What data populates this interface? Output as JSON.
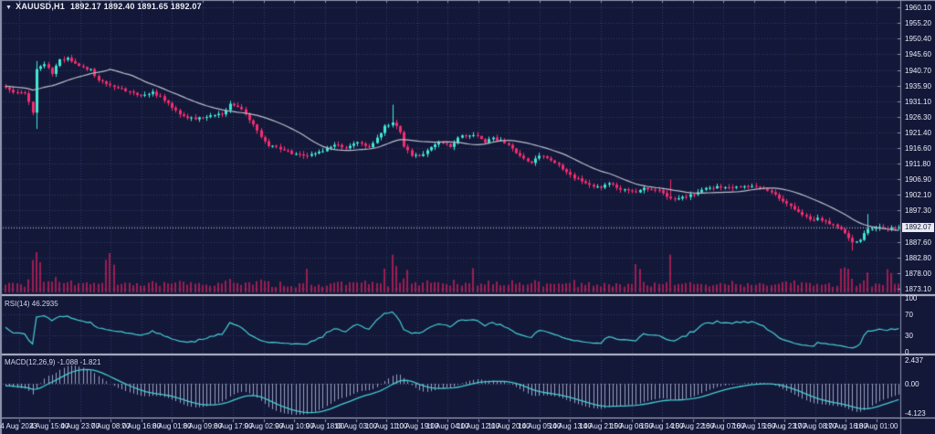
{
  "window": {
    "dropdown_icon": "▼",
    "symbol": "XAUUSD,H1",
    "ohlc": "1892.17 1892.40 1891.65 1892.07"
  },
  "colors": {
    "background": "#131839",
    "grid": "#2f3a68",
    "bull": "#3fe9d4",
    "bear": "#f62d6d",
    "volume": "#9c1e52",
    "ma_line": "#b9bdc9",
    "indicator_line": "#46ccd2",
    "macd_bars": "#9aa1bd",
    "separator": "#b9bdcb",
    "axis_text": "#e8eaf2",
    "price_line": "#c7cad6",
    "current_price_bg": "#e9eaf2",
    "current_price_text": "#131839"
  },
  "price_axis": {
    "ticks": [
      {
        "label": "1960.10",
        "price": 1960.1
      },
      {
        "label": "1955.20",
        "price": 1955.2
      },
      {
        "label": "1950.40",
        "price": 1950.4
      },
      {
        "label": "1945.60",
        "price": 1945.6
      },
      {
        "label": "1940.70",
        "price": 1940.7
      },
      {
        "label": "1935.90",
        "price": 1935.9
      },
      {
        "label": "1931.10",
        "price": 1931.1
      },
      {
        "label": "1926.30",
        "price": 1926.3
      },
      {
        "label": "1921.40",
        "price": 1921.4
      },
      {
        "label": "1916.60",
        "price": 1916.6
      },
      {
        "label": "1911.80",
        "price": 1911.8
      },
      {
        "label": "1906.90",
        "price": 1906.9
      },
      {
        "label": "1902.10",
        "price": 1902.1
      },
      {
        "label": "1897.30",
        "price": 1897.3
      },
      {
        "label": "1887.60",
        "price": 1887.6
      },
      {
        "label": "1882.80",
        "price": 1882.8
      },
      {
        "label": "1878.00",
        "price": 1878.0
      },
      {
        "label": "1873.10",
        "price": 1873.1
      }
    ],
    "hidden_ticks": [
      1892.45
    ],
    "current": {
      "label": "1892.07",
      "price": 1892.07
    }
  },
  "time_axis": {
    "labels": [
      "4 Aug 2023",
      "4 Aug 15:00",
      "4 Aug 23:00",
      "7 Aug 08:00",
      "7 Aug 16:00",
      "8 Aug 01:00",
      "8 Aug 09:00",
      "8 Aug 17:00",
      "9 Aug 02:00",
      "9 Aug 10:00",
      "9 Aug 18:00",
      "10 Aug 03:00",
      "10 Aug 11:00",
      "10 Aug 19:00",
      "11 Aug 04:00",
      "11 Aug 12:00",
      "11 Aug 20:00",
      "14 Aug 05:00",
      "14 Aug 13:00",
      "14 Aug 21:00",
      "15 Aug 06:00",
      "15 Aug 14:00",
      "15 Aug 22:00",
      "16 Aug 07:00",
      "16 Aug 15:00",
      "16 Aug 23:00",
      "17 Aug 08:00",
      "17 Aug 16:00",
      "18 Aug 01:00"
    ]
  },
  "indicators": {
    "rsi": {
      "label": "RSI(14) 46.2935",
      "period": 14,
      "current_value": 46.2935,
      "levels": [
        {
          "label": "100",
          "value": 100
        },
        {
          "label": "70",
          "value": 70
        },
        {
          "label": "30",
          "value": 30
        },
        {
          "label": "0",
          "value": 0
        }
      ]
    },
    "macd": {
      "label": "MACD(12,26,9) -1.088 -1.821",
      "params": [
        12,
        26,
        9
      ],
      "current_macd": -1.088,
      "current_signal": -1.821,
      "scale": [
        {
          "label": "2.437",
          "value": 2.437
        },
        {
          "label": "0.00",
          "value": 0.0
        },
        {
          "label": "-4.123",
          "value": -4.123
        }
      ]
    }
  },
  "chart_data": {
    "type": "candlestick",
    "symbol": "XAUUSD",
    "timeframe": "H1",
    "title": "XAUUSD,H1",
    "ohlc_display": {
      "open": "1892.17",
      "high": "1892.40",
      "low": "1891.65",
      "close": "1892.07"
    },
    "y_range": [
      1873.1,
      1960.1
    ],
    "num_candles": 232,
    "ma_period": 20,
    "seed": 7,
    "close_anchors": [
      [
        0,
        1935.3
      ],
      [
        2,
        1933.8
      ],
      [
        5,
        1933.5
      ],
      [
        7,
        1927.5
      ],
      [
        8,
        1941.0
      ],
      [
        10,
        1942.5
      ],
      [
        12,
        1939.5
      ],
      [
        14,
        1944.0
      ],
      [
        16,
        1944.5
      ],
      [
        19,
        1942.0
      ],
      [
        22,
        1941.0
      ],
      [
        24,
        1937.5
      ],
      [
        27,
        1936.0
      ],
      [
        31,
        1934.2
      ],
      [
        35,
        1932.8
      ],
      [
        38,
        1934.0
      ],
      [
        42,
        1930.5
      ],
      [
        45,
        1927.0
      ],
      [
        49,
        1925.5
      ],
      [
        52,
        1926.2
      ],
      [
        56,
        1927.0
      ],
      [
        58,
        1930.3
      ],
      [
        61,
        1928.6
      ],
      [
        63,
        1925.2
      ],
      [
        66,
        1920.0
      ],
      [
        68,
        1917.2
      ],
      [
        71,
        1916.2
      ],
      [
        75,
        1914.8
      ],
      [
        78,
        1914.2
      ],
      [
        82,
        1915.6
      ],
      [
        85,
        1917.6
      ],
      [
        88,
        1916.5
      ],
      [
        91,
        1918.4
      ],
      [
        94,
        1916.9
      ],
      [
        96,
        1919.8
      ],
      [
        98,
        1923.5
      ],
      [
        100,
        1924.5
      ],
      [
        102,
        1921.5
      ],
      [
        103,
        1917.0
      ],
      [
        105,
        1914.2
      ],
      [
        108,
        1914.7
      ],
      [
        110,
        1916.9
      ],
      [
        112,
        1918.3
      ],
      [
        115,
        1916.9
      ],
      [
        117,
        1919.8
      ],
      [
        119,
        1920.3
      ],
      [
        122,
        1920.3
      ],
      [
        124,
        1918.3
      ],
      [
        126,
        1919.8
      ],
      [
        130,
        1917.5
      ],
      [
        133,
        1914.2
      ],
      [
        136,
        1912.0
      ],
      [
        138,
        1914.2
      ],
      [
        141,
        1912.8
      ],
      [
        144,
        1910.0
      ],
      [
        147,
        1907.2
      ],
      [
        149,
        1906.3
      ],
      [
        151,
        1905.2
      ],
      [
        154,
        1904.3
      ],
      [
        156,
        1905.7
      ],
      [
        158,
        1904.3
      ],
      [
        161,
        1903.5
      ],
      [
        163,
        1902.9
      ],
      [
        165,
        1904.3
      ],
      [
        169,
        1903.5
      ],
      [
        172,
        1901.0
      ],
      [
        175,
        1901.5
      ],
      [
        177,
        1902.3
      ],
      [
        179,
        1902.9
      ],
      [
        182,
        1904.3
      ],
      [
        184,
        1904.8
      ],
      [
        188,
        1904.3
      ],
      [
        191,
        1904.8
      ],
      [
        195,
        1904.3
      ],
      [
        198,
        1902.9
      ],
      [
        201,
        1900.1
      ],
      [
        203,
        1898.7
      ],
      [
        206,
        1895.9
      ],
      [
        208,
        1894.5
      ],
      [
        210,
        1895.0
      ],
      [
        213,
        1893.1
      ],
      [
        215,
        1892.2
      ],
      [
        217,
        1890.3
      ],
      [
        219,
        1887.4
      ],
      [
        221,
        1888.2
      ],
      [
        223,
        1891.6
      ],
      [
        226,
        1892.2
      ],
      [
        228,
        1891.6
      ],
      [
        231,
        1892.07
      ]
    ],
    "events": {
      "8": {
        "low": 1922.5,
        "high": 1943.5
      },
      "100": {
        "high": 1930.0
      },
      "172": {
        "high": 1906.8
      },
      "219": {
        "low": 1884.9
      },
      "223": {
        "high": 1896.2
      }
    },
    "volume_boosts": {
      "7": 18,
      "8": 36,
      "9": 24,
      "26": 24,
      "27": 34,
      "28": 20,
      "78": 14,
      "98": 14,
      "100": 20,
      "101": 16,
      "104": 12,
      "121": 16,
      "163": 24,
      "164": 18,
      "172": 22,
      "216": 18,
      "217": 20,
      "218": 14,
      "228": 14,
      "229": 12
    }
  }
}
